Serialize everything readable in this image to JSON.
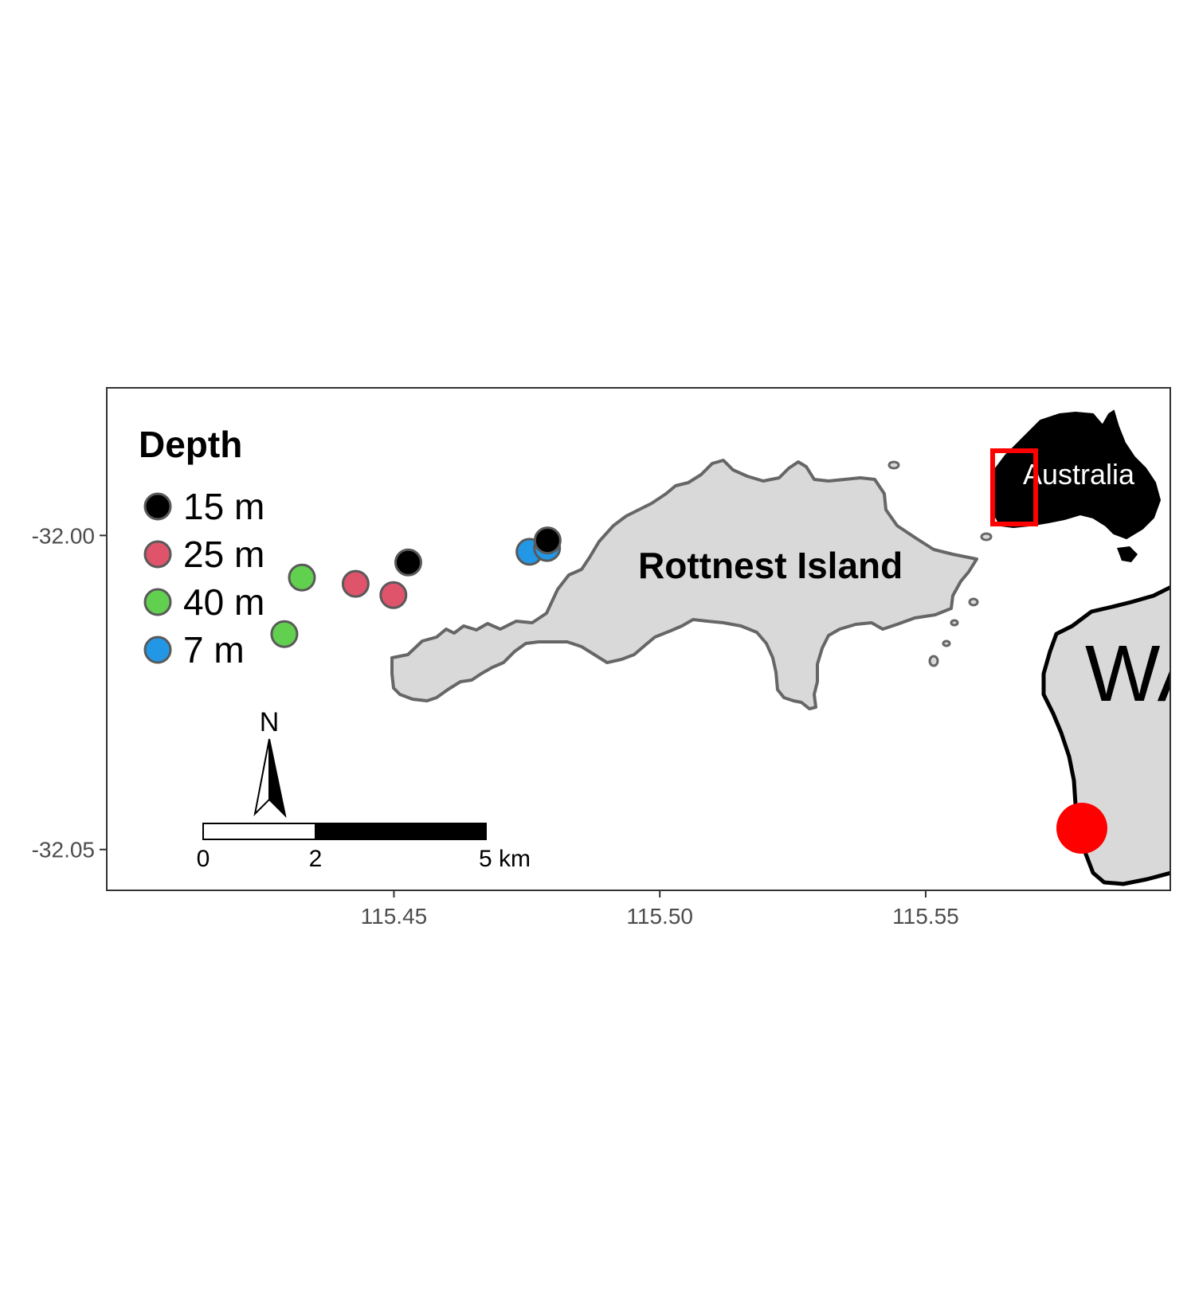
{
  "legend": {
    "title": "Depth",
    "items": [
      {
        "label": "15 m",
        "color": "#000000"
      },
      {
        "label": "25 m",
        "color": "#DF536B"
      },
      {
        "label": "40 m",
        "color": "#61D04F"
      },
      {
        "label": "7 m",
        "color": "#2297E6"
      }
    ]
  },
  "labels": {
    "island": "Rottnest Island",
    "inset_country": "Australia",
    "inset_state": "WA"
  },
  "scale_bar": {
    "ticks": [
      "0",
      "2",
      "5 km"
    ]
  },
  "north_arrow": {
    "label": "N"
  },
  "colors": {
    "land_fill": "#d9d9d9",
    "coast_stroke": "#666666",
    "inset_box": "#ff0000",
    "site_marker": "#ff0000"
  },
  "chart_data": {
    "type": "scatter",
    "xlim": [
      115.396,
      115.596
    ],
    "ylim": [
      -32.0565,
      -31.9765
    ],
    "x_ticks": [
      "115.45",
      "115.50",
      "115.55"
    ],
    "y_ticks": [
      "-32.00",
      "-32.05"
    ],
    "series": [
      {
        "name": "15 m",
        "points": [
          [
            115.4527,
            -32.0043
          ],
          [
            115.4789,
            -32.0008
          ]
        ]
      },
      {
        "name": "25 m",
        "points": [
          [
            115.4428,
            -32.0077
          ],
          [
            115.4499,
            -32.0095
          ]
        ]
      },
      {
        "name": "40 m",
        "points": [
          [
            115.4327,
            -32.0067
          ],
          [
            115.4294,
            -32.0157
          ]
        ]
      },
      {
        "name": "7 m",
        "points": [
          [
            115.4755,
            -32.0026
          ],
          [
            115.4788,
            -32.002
          ]
        ]
      }
    ]
  }
}
